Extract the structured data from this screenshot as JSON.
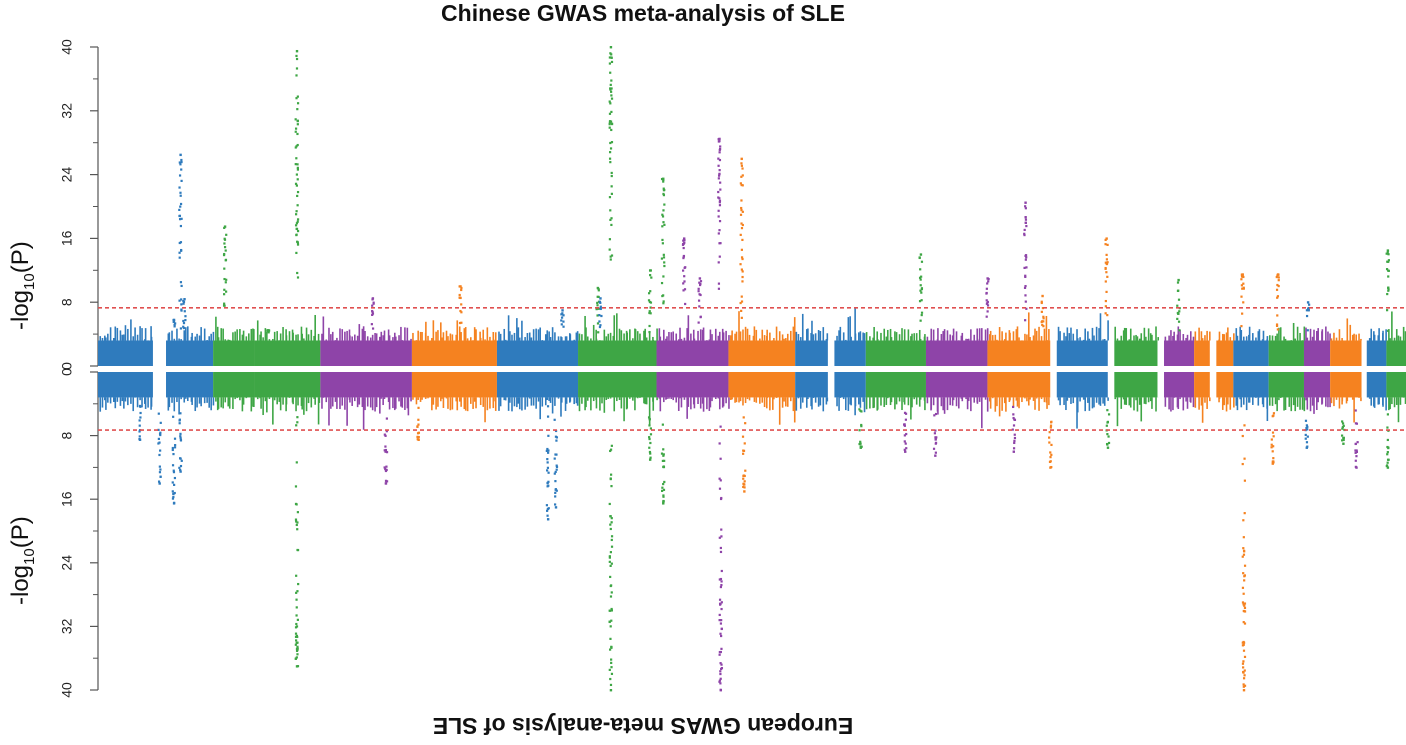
{
  "chart_data": {
    "type": "scatter",
    "subtype": "miami-plot",
    "top": {
      "title": "Chinese GWAS meta-analysis of SLE",
      "ylabel_main": "-log",
      "ylabel_sub": "10",
      "ylabel_paren": "(P)",
      "ylim": [
        0,
        40
      ],
      "yticks": [
        "0",
        "8",
        "16",
        "24",
        "32",
        "40"
      ],
      "threshold": 7.3
    },
    "bottom": {
      "title": "European GWAS meta-analysis of SLE",
      "ylabel_main": "-log",
      "ylabel_sub": "10",
      "ylabel_paren": "(P)",
      "ylim": [
        0,
        40
      ],
      "yticks": [
        "0",
        "8",
        "16",
        "24",
        "32",
        "40"
      ],
      "threshold": 7.3
    },
    "colors": [
      "#2f7bbd",
      "#3ea645",
      "#8e44a8",
      "#f58220"
    ],
    "threshold_color": "#e05050",
    "chromosomes": [
      {
        "start": 0.0,
        "end": 0.042,
        "color": 0
      },
      {
        "start": 0.052,
        "end": 0.088,
        "color": 0
      },
      {
        "start": 0.088,
        "end": 0.12,
        "color": 1
      },
      {
        "start": 0.12,
        "end": 0.17,
        "color": 1
      },
      {
        "start": 0.17,
        "end": 0.24,
        "color": 2
      },
      {
        "start": 0.24,
        "end": 0.305,
        "color": 3
      },
      {
        "start": 0.305,
        "end": 0.367,
        "color": 0
      },
      {
        "start": 0.367,
        "end": 0.427,
        "color": 1
      },
      {
        "start": 0.427,
        "end": 0.482,
        "color": 2
      },
      {
        "start": 0.482,
        "end": 0.533,
        "color": 3
      },
      {
        "start": 0.533,
        "end": 0.558,
        "color": 0
      },
      {
        "start": 0.563,
        "end": 0.587,
        "color": 0
      },
      {
        "start": 0.587,
        "end": 0.633,
        "color": 1
      },
      {
        "start": 0.633,
        "end": 0.68,
        "color": 2
      },
      {
        "start": 0.68,
        "end": 0.728,
        "color": 3
      },
      {
        "start": 0.733,
        "end": 0.772,
        "color": 0
      },
      {
        "start": 0.777,
        "end": 0.81,
        "color": 1
      },
      {
        "start": 0.815,
        "end": 0.838,
        "color": 2
      },
      {
        "start": 0.838,
        "end": 0.85,
        "color": 3
      },
      {
        "start": 0.855,
        "end": 0.868,
        "color": 3
      },
      {
        "start": 0.868,
        "end": 0.895,
        "color": 0
      },
      {
        "start": 0.895,
        "end": 0.922,
        "color": 1
      },
      {
        "start": 0.922,
        "end": 0.942,
        "color": 2
      },
      {
        "start": 0.942,
        "end": 0.966,
        "color": 3
      },
      {
        "start": 0.97,
        "end": 0.985,
        "color": 0
      },
      {
        "start": 0.985,
        "end": 1.0,
        "color": 1
      }
    ],
    "peaks_top": [
      {
        "x": 0.058,
        "y": 5.8,
        "color": 0
      },
      {
        "x": 0.063,
        "y": 26.5,
        "color": 0
      },
      {
        "x": 0.066,
        "y": 8.4,
        "color": 0
      },
      {
        "x": 0.097,
        "y": 17.5,
        "color": 1
      },
      {
        "x": 0.13,
        "y": 4.5,
        "color": 1
      },
      {
        "x": 0.152,
        "y": 39.5,
        "color": 1
      },
      {
        "x": 0.21,
        "y": 8.5,
        "color": 2
      },
      {
        "x": 0.277,
        "y": 10.0,
        "color": 3
      },
      {
        "x": 0.355,
        "y": 7.0,
        "color": 0
      },
      {
        "x": 0.382,
        "y": 9.8,
        "color": 1
      },
      {
        "x": 0.384,
        "y": 8.5,
        "color": 0
      },
      {
        "x": 0.392,
        "y": 40,
        "color": 1
      },
      {
        "x": 0.422,
        "y": 12.0,
        "color": 1
      },
      {
        "x": 0.432,
        "y": 23.5,
        "color": 1
      },
      {
        "x": 0.448,
        "y": 16.0,
        "color": 2
      },
      {
        "x": 0.46,
        "y": 11.0,
        "color": 2
      },
      {
        "x": 0.475,
        "y": 28.5,
        "color": 2
      },
      {
        "x": 0.492,
        "y": 26.0,
        "color": 3
      },
      {
        "x": 0.629,
        "y": 14.0,
        "color": 1
      },
      {
        "x": 0.68,
        "y": 11.0,
        "color": 2
      },
      {
        "x": 0.709,
        "y": 20.5,
        "color": 2
      },
      {
        "x": 0.722,
        "y": 8.8,
        "color": 3
      },
      {
        "x": 0.771,
        "y": 16.0,
        "color": 3
      },
      {
        "x": 0.826,
        "y": 10.8,
        "color": 1
      },
      {
        "x": 0.875,
        "y": 11.5,
        "color": 3
      },
      {
        "x": 0.902,
        "y": 11.5,
        "color": 3
      },
      {
        "x": 0.925,
        "y": 8.0,
        "color": 0
      },
      {
        "x": 0.986,
        "y": 14.5,
        "color": 1
      }
    ],
    "peaks_bottom": [
      {
        "x": 0.032,
        "y": 8.5,
        "color": 0
      },
      {
        "x": 0.047,
        "y": 14.0,
        "color": 0
      },
      {
        "x": 0.058,
        "y": 16.5,
        "color": 0
      },
      {
        "x": 0.063,
        "y": 12.5,
        "color": 0
      },
      {
        "x": 0.152,
        "y": 37.0,
        "color": 1
      },
      {
        "x": 0.245,
        "y": 8.5,
        "color": 3
      },
      {
        "x": 0.22,
        "y": 14.0,
        "color": 2
      },
      {
        "x": 0.344,
        "y": 18.5,
        "color": 0
      },
      {
        "x": 0.35,
        "y": 17.0,
        "color": 0
      },
      {
        "x": 0.392,
        "y": 40,
        "color": 1
      },
      {
        "x": 0.422,
        "y": 11.0,
        "color": 1
      },
      {
        "x": 0.432,
        "y": 16.5,
        "color": 1
      },
      {
        "x": 0.476,
        "y": 40,
        "color": 2
      },
      {
        "x": 0.494,
        "y": 15.0,
        "color": 3
      },
      {
        "x": 0.583,
        "y": 9.5,
        "color": 1
      },
      {
        "x": 0.617,
        "y": 10.0,
        "color": 2
      },
      {
        "x": 0.64,
        "y": 10.5,
        "color": 2
      },
      {
        "x": 0.7,
        "y": 10.0,
        "color": 2
      },
      {
        "x": 0.728,
        "y": 12.0,
        "color": 3
      },
      {
        "x": 0.772,
        "y": 9.5,
        "color": 1
      },
      {
        "x": 0.876,
        "y": 40,
        "color": 3
      },
      {
        "x": 0.898,
        "y": 11.5,
        "color": 3
      },
      {
        "x": 0.924,
        "y": 9.5,
        "color": 0
      },
      {
        "x": 0.952,
        "y": 9.0,
        "color": 1
      },
      {
        "x": 0.962,
        "y": 12.0,
        "color": 2
      },
      {
        "x": 0.986,
        "y": 12.0,
        "color": 1
      }
    ]
  }
}
